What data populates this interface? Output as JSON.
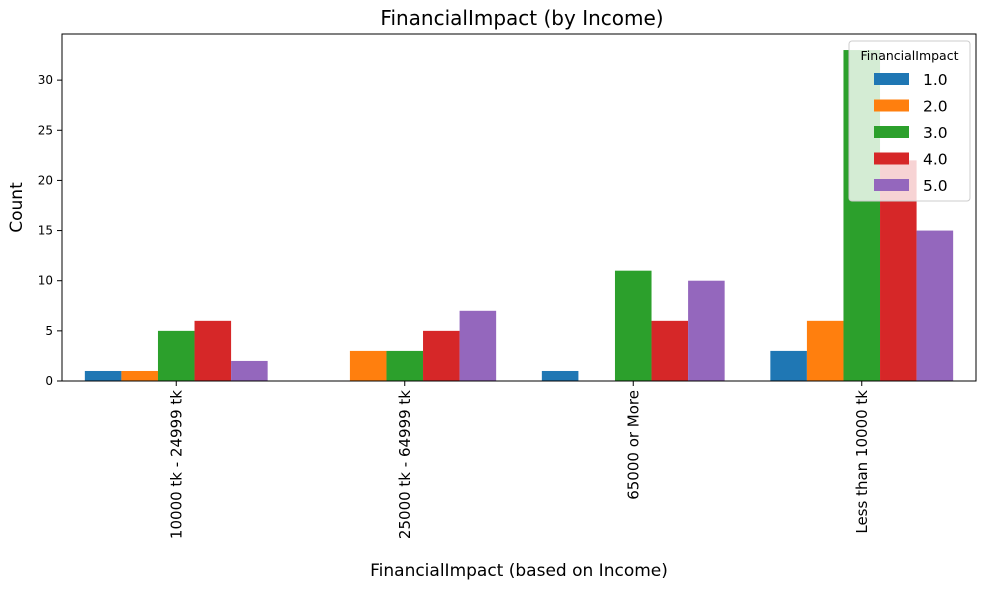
{
  "chart_data": {
    "type": "bar",
    "title": "FinancialImpact (by Income)",
    "xlabel": "FinancialImpact (based on Income)",
    "ylabel": "Count",
    "categories": [
      "10000 tk - 24999 tk",
      "25000 tk - 64999 tk",
      "65000 or More",
      "Less than 10000 tk"
    ],
    "ylim": [
      0,
      34.6
    ],
    "yticks": [
      0,
      5,
      10,
      15,
      20,
      25,
      30
    ],
    "grid": false,
    "legend": {
      "title": "FinancialImpact",
      "placement": "upper right"
    },
    "series": [
      {
        "name": "1.0",
        "color": "#1f77b4",
        "values": [
          1,
          0,
          1,
          3
        ]
      },
      {
        "name": "2.0",
        "color": "#ff7f0e",
        "values": [
          1,
          3,
          0,
          6
        ]
      },
      {
        "name": "3.0",
        "color": "#2ca02c",
        "values": [
          5,
          3,
          11,
          33
        ]
      },
      {
        "name": "4.0",
        "color": "#d62728",
        "values": [
          6,
          5,
          6,
          22
        ]
      },
      {
        "name": "5.0",
        "color": "#9467bd",
        "values": [
          2,
          7,
          10,
          15
        ]
      }
    ]
  }
}
